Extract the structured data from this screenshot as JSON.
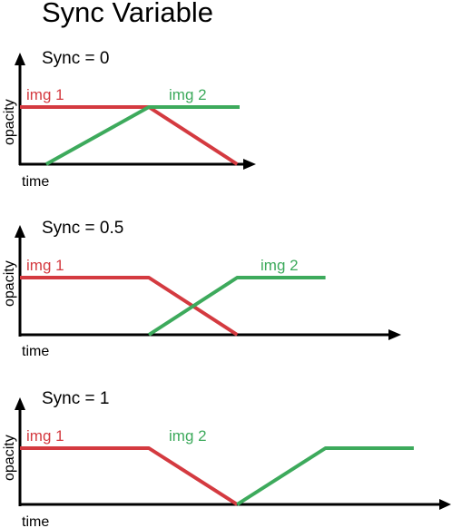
{
  "title": "Sync Variable",
  "colors": {
    "img1": "#d43a40",
    "img2": "#3daa5c"
  },
  "chart_data": [
    {
      "type": "line",
      "sync_label": "Sync = 0",
      "xlabel": "time",
      "ylabel": "opacity",
      "series": [
        {
          "name": "img 1",
          "x": [
            0,
            0.54,
            0.91
          ],
          "y": [
            1,
            1,
            0
          ]
        },
        {
          "name": "img 2",
          "x": [
            0.11,
            0.54,
            0.92
          ],
          "y": [
            0,
            1,
            1
          ]
        }
      ]
    },
    {
      "type": "line",
      "sync_label": "Sync = 0.5",
      "xlabel": "time",
      "ylabel": "opacity",
      "series": [
        {
          "name": "img 1",
          "x": [
            0,
            0.54,
            0.91
          ],
          "y": [
            1,
            1,
            0
          ]
        },
        {
          "name": "img 2",
          "x": [
            0.54,
            0.91,
            1.28
          ],
          "y": [
            0,
            1,
            1
          ]
        }
      ]
    },
    {
      "type": "line",
      "sync_label": "Sync = 1",
      "xlabel": "time",
      "ylabel": "opacity",
      "series": [
        {
          "name": "img 1",
          "x": [
            0,
            0.54,
            0.91
          ],
          "y": [
            1,
            1,
            0
          ]
        },
        {
          "name": "img 2",
          "x": [
            0.91,
            1.28,
            1.65
          ],
          "y": [
            0,
            1,
            1
          ]
        }
      ]
    }
  ]
}
